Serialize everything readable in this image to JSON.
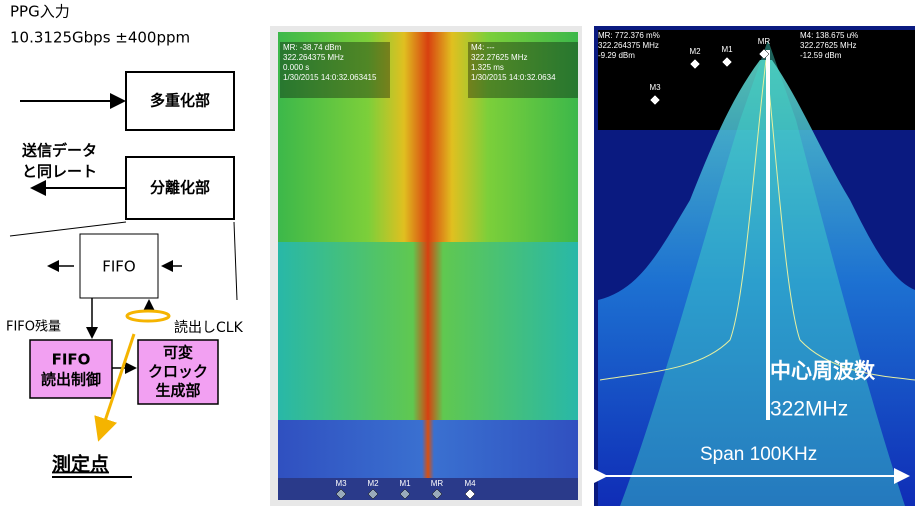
{
  "left_diagram": {
    "input_title": "PPG入力",
    "input_rate": "10.3125Gbps ±400ppm",
    "mux_block": "多重化部",
    "tx_rate_note": [
      "送信データ",
      "と同レート"
    ],
    "demux_block": "分離化部",
    "fifo_block": "FIFO",
    "fifo_level": "FIFO残量",
    "read_clk": "読出しCLK",
    "fifo_control_block": [
      "FIFO",
      "読出制御"
    ],
    "clock_gen_block": [
      "可変",
      "クロック",
      "生成部"
    ],
    "measure_point": "測定点"
  },
  "spectrogram": {
    "readout_left": [
      "MR: -38.74 dBm",
      "322.264375 MHz",
      "0.000 s",
      "1/30/2015 14:0:32.063415"
    ],
    "readout_right": [
      "M4: ---",
      "322.27625 MHz",
      "1.325 ms",
      "1/30/2015 14:0:32.0634"
    ],
    "markers": [
      "M3",
      "M2",
      "M1",
      "MR",
      "M4"
    ]
  },
  "spectrum": {
    "readout_left": [
      "MR: 772.376 m%",
      "322.264375 MHz",
      "-9.29 dBm"
    ],
    "readout_right": [
      "M4: 138.675 u%",
      "322.27625 MHz",
      "-12.59 dBm"
    ],
    "markers": [
      "M2",
      "M1",
      "MR",
      "M3"
    ],
    "center_label": "中心周波数",
    "center_value": "322MHz",
    "span_label": "Span 100KHz"
  }
}
